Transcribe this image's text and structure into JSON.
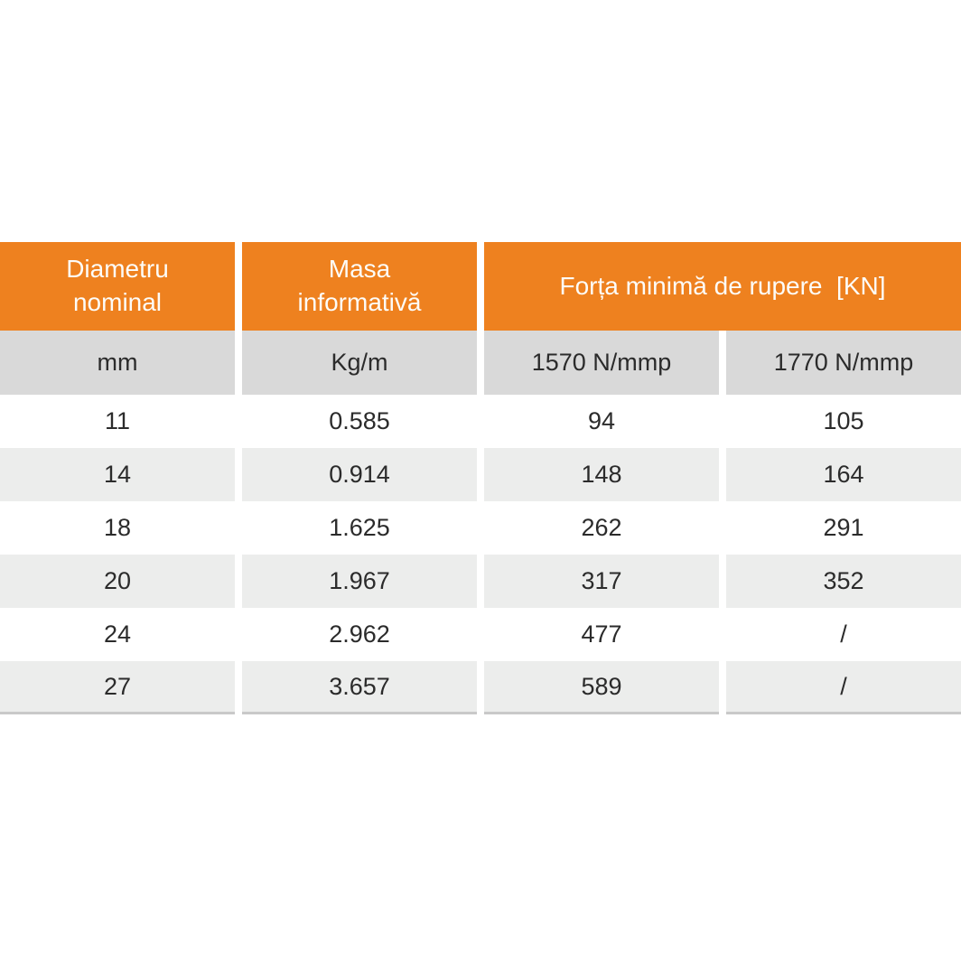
{
  "page": {
    "background_color": "#FFFFFF"
  },
  "chart_data": {
    "type": "table",
    "title": "Forța minimă de rupere  [KN]",
    "header_groups": [
      {
        "label": "Diametru\nnominal",
        "col_span": 1
      },
      {
        "label": "Masa\ninformativă",
        "col_span": 1
      },
      {
        "label": "Forța minimă de rupere  [KN]",
        "col_span": 2
      }
    ],
    "unit_headers": [
      "mm",
      "Kg/m",
      "1570 N/mmp",
      "1770 N/mmp"
    ],
    "rows": [
      [
        "11",
        "0.585",
        "94",
        "105"
      ],
      [
        "14",
        "0.914",
        "148",
        "164"
      ],
      [
        "18",
        "1.625",
        "262",
        "291"
      ],
      [
        "20",
        "1.967",
        "317",
        "352"
      ],
      [
        "24",
        "2.962",
        "477",
        "/"
      ],
      [
        "27",
        "3.657",
        "589",
        "/"
      ]
    ],
    "missing_value_symbol": "/",
    "layout": {
      "header_bg": "#EE811F",
      "header_text": "#FDFCF8",
      "unit_row_bg": "#D9D9D9",
      "row_bg": "#FFFFFF",
      "row_alt_bg": "#ECEDEC",
      "body_text": "#2B2B2B",
      "bottom_border": "#C9C9C9",
      "shaded_rows": [
        "14",
        "20",
        "27"
      ]
    }
  }
}
